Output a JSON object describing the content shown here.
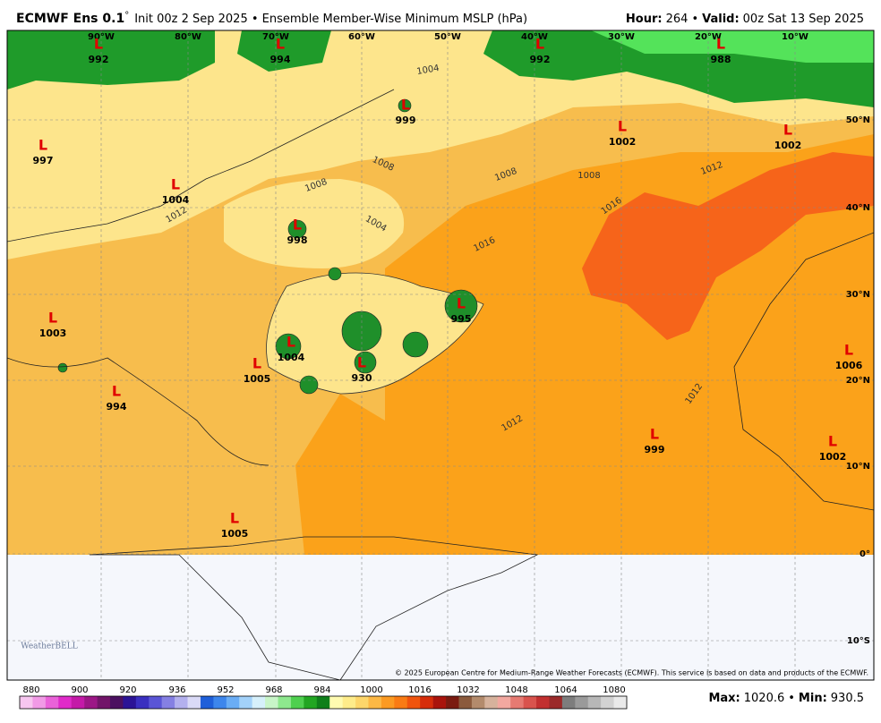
{
  "header": {
    "title": "ECMWF Ens 0.1",
    "degree": "°",
    "subtitle": "Init 00z 2 Sep 2025 • Ensemble Member-Wise Minimum MSLP (hPa)",
    "hour_label": "Hour:",
    "hour": "264",
    "separator": "•",
    "valid_label": "Valid:",
    "valid": "00z Sat 13 Sep 2025"
  },
  "map": {
    "lon_labels": [
      "90°W",
      "80°W",
      "70°W",
      "60°W",
      "50°W",
      "40°W",
      "30°W",
      "20°W",
      "10°W"
    ],
    "lat_labels": [
      "50°N",
      "40°N",
      "30°N",
      "20°N",
      "10°N",
      "0°",
      "10°S"
    ],
    "lows": [
      {
        "label": "L",
        "value": "992"
      },
      {
        "label": "L",
        "value": "994"
      },
      {
        "label": "L",
        "value": "992"
      },
      {
        "label": "L",
        "value": "988"
      },
      {
        "label": "L",
        "value": "999"
      },
      {
        "label": "L",
        "value": "1002"
      },
      {
        "label": "L",
        "value": "1002"
      },
      {
        "label": "L",
        "value": "997"
      },
      {
        "label": "L",
        "value": "1004"
      },
      {
        "label": "L",
        "value": "998"
      },
      {
        "label": "L",
        "value": "1003"
      },
      {
        "label": "L",
        "value": "1004"
      },
      {
        "label": "L",
        "value": "1005"
      },
      {
        "label": "L",
        "value": "930"
      },
      {
        "label": "L",
        "value": "995"
      },
      {
        "label": "L",
        "value": "994"
      },
      {
        "label": "L",
        "value": "1006"
      },
      {
        "label": "L",
        "value": "999"
      },
      {
        "label": "L",
        "value": "1002"
      },
      {
        "label": "L",
        "value": "1005"
      }
    ],
    "contour_labels": [
      "1004",
      "1008",
      "1008",
      "1008",
      "1012",
      "1016",
      "1016",
      "1012",
      "1012",
      "1004",
      "1008",
      "1012"
    ],
    "logo": "WeatherBELL",
    "copyright": "© 2025 European Centre for Medium-Range Weather Forecasts (ECMWF). This service is based on data and products of the ECMWF."
  },
  "colorbar": {
    "ticks": [
      "880",
      "900",
      "920",
      "936",
      "952",
      "968",
      "984",
      "1000",
      "1016",
      "1032",
      "1048",
      "1064",
      "1080"
    ],
    "colors": [
      "#f7c6f0",
      "#f19ae6",
      "#ea62d9",
      "#e02bc9",
      "#c41aa8",
      "#9c1786",
      "#721569",
      "#4b1060",
      "#2b1396",
      "#3a2fc0",
      "#5a55d6",
      "#8580e3",
      "#b3b0ee",
      "#dadaf7",
      "#1f5fd9",
      "#3d86ec",
      "#6aadf5",
      "#a3d2fa",
      "#d6f0fb",
      "#c8f5c8",
      "#8ee88e",
      "#4fd04f",
      "#22a622",
      "#0f7f1a",
      "#fffbb0",
      "#feec8a",
      "#fdd66a",
      "#fcb845",
      "#fb9a22",
      "#f97b14",
      "#f0540d",
      "#d62d0a",
      "#a9140c",
      "#7a1b10",
      "#8b5a3c",
      "#b38b6c",
      "#d6b29c",
      "#f2a8a0",
      "#e67a72",
      "#d9534d",
      "#c23030",
      "#9b2a2a",
      "#7d7d7d",
      "#9a9a9a",
      "#b7b7b7",
      "#d2d2d2",
      "#eaeaea"
    ]
  },
  "footer": {
    "max_label": "Max:",
    "max": "1020.6",
    "separator": "•",
    "min_label": "Min:",
    "min": "930.5"
  }
}
